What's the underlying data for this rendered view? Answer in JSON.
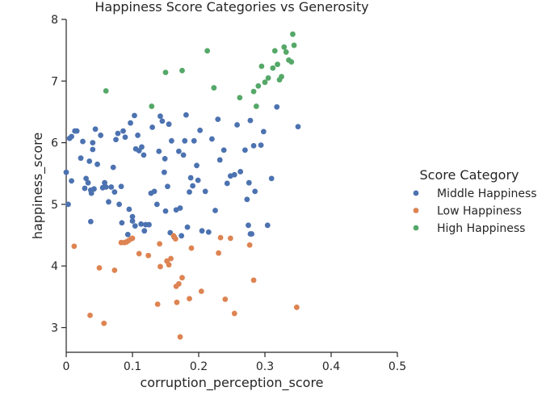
{
  "chart_data": {
    "type": "scatter",
    "title": "Happiness Score Categories vs Generosity",
    "xlabel": "corruption_perception_score",
    "ylabel": "happiness_score",
    "xlim": [
      0,
      0.5
    ],
    "ylim": [
      2.6,
      8
    ],
    "xticks": [
      "0",
      "0.1",
      "0.2",
      "0.3",
      "0.4",
      "0.5"
    ],
    "yticks": [
      "3",
      "4",
      "5",
      "6",
      "7",
      "8"
    ],
    "grid": false,
    "legend": {
      "title": "Score Category",
      "placement": "center-right"
    },
    "series": [
      {
        "name": "Middle Happiness",
        "color": "#4c72b0",
        "points": [
          [
            0.0,
            5.52
          ],
          [
            0.003,
            5.0
          ],
          [
            0.005,
            6.07
          ],
          [
            0.008,
            5.38
          ],
          [
            0.008,
            6.1
          ],
          [
            0.013,
            6.19
          ],
          [
            0.016,
            6.19
          ],
          [
            0.022,
            5.75
          ],
          [
            0.025,
            6.02
          ],
          [
            0.028,
            5.26
          ],
          [
            0.03,
            5.42
          ],
          [
            0.033,
            5.35
          ],
          [
            0.035,
            5.7
          ],
          [
            0.037,
            5.23
          ],
          [
            0.037,
            4.72
          ],
          [
            0.038,
            5.18
          ],
          [
            0.04,
            6.0
          ],
          [
            0.04,
            5.89
          ],
          [
            0.042,
            5.25
          ],
          [
            0.044,
            6.22
          ],
          [
            0.047,
            5.65
          ],
          [
            0.052,
            6.12
          ],
          [
            0.055,
            5.27
          ],
          [
            0.058,
            5.35
          ],
          [
            0.06,
            5.28
          ],
          [
            0.064,
            5.04
          ],
          [
            0.068,
            5.28
          ],
          [
            0.071,
            5.6
          ],
          [
            0.073,
            5.2
          ],
          [
            0.075,
            6.05
          ],
          [
            0.078,
            6.15
          ],
          [
            0.08,
            5.0
          ],
          [
            0.083,
            5.29
          ],
          [
            0.084,
            4.7
          ],
          [
            0.086,
            6.19
          ],
          [
            0.089,
            6.09
          ],
          [
            0.093,
            4.51
          ],
          [
            0.095,
            4.92
          ],
          [
            0.097,
            6.32
          ],
          [
            0.1,
            4.8
          ],
          [
            0.1,
            4.73
          ],
          [
            0.103,
            6.44
          ],
          [
            0.104,
            4.65
          ],
          [
            0.105,
            5.9
          ],
          [
            0.108,
            6.12
          ],
          [
            0.11,
            5.87
          ],
          [
            0.113,
            4.68
          ],
          [
            0.114,
            5.93
          ],
          [
            0.117,
            5.8
          ],
          [
            0.118,
            4.57
          ],
          [
            0.12,
            4.67
          ],
          [
            0.125,
            4.67
          ],
          [
            0.128,
            5.18
          ],
          [
            0.13,
            6.25
          ],
          [
            0.133,
            5.21
          ],
          [
            0.137,
            5.0
          ],
          [
            0.14,
            5.86
          ],
          [
            0.142,
            6.43
          ],
          [
            0.145,
            6.35
          ],
          [
            0.148,
            5.52
          ],
          [
            0.149,
            5.74
          ],
          [
            0.15,
            4.89
          ],
          [
            0.153,
            5.29
          ],
          [
            0.155,
            6.3
          ],
          [
            0.157,
            4.54
          ],
          [
            0.159,
            6.03
          ],
          [
            0.163,
            4.47
          ],
          [
            0.166,
            4.91
          ],
          [
            0.17,
            5.86
          ],
          [
            0.172,
            4.94
          ],
          [
            0.174,
            4.49
          ],
          [
            0.177,
            5.8
          ],
          [
            0.179,
            6.03
          ],
          [
            0.181,
            6.45
          ],
          [
            0.183,
            4.63
          ],
          [
            0.186,
            5.2
          ],
          [
            0.188,
            5.43
          ],
          [
            0.191,
            5.3
          ],
          [
            0.193,
            6.03
          ],
          [
            0.197,
            5.63
          ],
          [
            0.199,
            5.39
          ],
          [
            0.202,
            6.2
          ],
          [
            0.205,
            4.57
          ],
          [
            0.21,
            5.21
          ],
          [
            0.215,
            4.55
          ],
          [
            0.22,
            6.06
          ],
          [
            0.225,
            4.9
          ],
          [
            0.229,
            6.38
          ],
          [
            0.232,
            5.72
          ],
          [
            0.238,
            5.88
          ],
          [
            0.243,
            5.34
          ],
          [
            0.248,
            5.46
          ],
          [
            0.254,
            5.48
          ],
          [
            0.258,
            6.29
          ],
          [
            0.263,
            5.53
          ],
          [
            0.27,
            5.88
          ],
          [
            0.273,
            5.08
          ],
          [
            0.275,
            4.66
          ],
          [
            0.276,
            5.35
          ],
          [
            0.278,
            4.52
          ],
          [
            0.278,
            6.36
          ],
          [
            0.28,
            4.52
          ],
          [
            0.283,
            5.95
          ],
          [
            0.285,
            5.21
          ],
          [
            0.294,
            5.96
          ],
          [
            0.298,
            6.18
          ],
          [
            0.304,
            4.66
          ],
          [
            0.31,
            5.42
          ],
          [
            0.318,
            6.58
          ],
          [
            0.35,
            6.26
          ]
        ]
      },
      {
        "name": "Low Happiness",
        "color": "#dd8452",
        "points": [
          [
            0.012,
            4.32
          ],
          [
            0.036,
            3.2
          ],
          [
            0.05,
            3.97
          ],
          [
            0.057,
            3.07
          ],
          [
            0.073,
            3.93
          ],
          [
            0.083,
            4.38
          ],
          [
            0.088,
            4.38
          ],
          [
            0.091,
            4.39
          ],
          [
            0.094,
            4.41
          ],
          [
            0.098,
            4.44
          ],
          [
            0.1,
            4.45
          ],
          [
            0.11,
            4.2
          ],
          [
            0.124,
            4.17
          ],
          [
            0.138,
            3.38
          ],
          [
            0.141,
            4.36
          ],
          [
            0.142,
            3.99
          ],
          [
            0.152,
            4.08
          ],
          [
            0.155,
            4.02
          ],
          [
            0.158,
            4.12
          ],
          [
            0.162,
            4.49
          ],
          [
            0.165,
            4.44
          ],
          [
            0.166,
            3.67
          ],
          [
            0.167,
            3.41
          ],
          [
            0.17,
            3.71
          ],
          [
            0.172,
            2.85
          ],
          [
            0.175,
            3.81
          ],
          [
            0.186,
            3.47
          ],
          [
            0.189,
            4.29
          ],
          [
            0.204,
            3.59
          ],
          [
            0.23,
            4.21
          ],
          [
            0.233,
            4.46
          ],
          [
            0.24,
            3.46
          ],
          [
            0.248,
            4.45
          ],
          [
            0.254,
            3.23
          ],
          [
            0.277,
            4.34
          ],
          [
            0.283,
            3.77
          ],
          [
            0.348,
            3.33
          ]
        ]
      },
      {
        "name": "High Happiness",
        "color": "#55a868",
        "points": [
          [
            0.06,
            6.84
          ],
          [
            0.129,
            6.59
          ],
          [
            0.15,
            7.14
          ],
          [
            0.175,
            7.17
          ],
          [
            0.213,
            7.49
          ],
          [
            0.223,
            6.89
          ],
          [
            0.262,
            6.73
          ],
          [
            0.283,
            6.83
          ],
          [
            0.287,
            6.59
          ],
          [
            0.29,
            6.92
          ],
          [
            0.295,
            7.24
          ],
          [
            0.3,
            6.98
          ],
          [
            0.305,
            7.05
          ],
          [
            0.312,
            7.21
          ],
          [
            0.315,
            7.49
          ],
          [
            0.319,
            7.27
          ],
          [
            0.322,
            7.02
          ],
          [
            0.325,
            7.07
          ],
          [
            0.329,
            7.55
          ],
          [
            0.332,
            7.47
          ],
          [
            0.336,
            7.34
          ],
          [
            0.34,
            7.31
          ],
          [
            0.342,
            7.76
          ],
          [
            0.344,
            7.58
          ]
        ]
      }
    ]
  }
}
